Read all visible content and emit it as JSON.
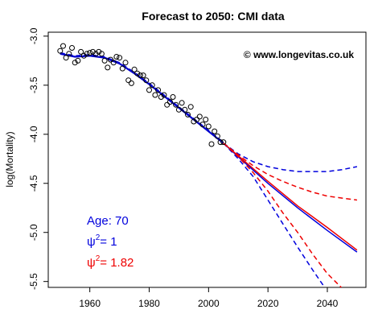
{
  "chart_data": {
    "type": "line",
    "title": "Forecast to 2050: CMI data",
    "xlabel": "",
    "ylabel": "log(Mortality)",
    "xlim": [
      1946,
      2053
    ],
    "ylim": [
      -5.56,
      -2.96
    ],
    "x_ticks": [
      1960,
      1980,
      2000,
      2020,
      2040
    ],
    "y_ticks": [
      -3.0,
      -3.5,
      -4.0,
      -4.5,
      -5.0,
      -5.5
    ],
    "y_tick_labels": [
      "-3.0",
      "-3.5",
      "-4.0",
      "-4.5",
      "-5.0",
      "-5.5"
    ],
    "credit": "© www.longevitas.co.uk",
    "annotation": {
      "age_text": "Age: 70",
      "psi_blue_prefix": "ψ",
      "psi_blue_sup": "2",
      "psi_blue_value": "= 1",
      "psi_red_prefix": "ψ",
      "psi_red_sup": "2",
      "psi_red_value": "= 1.82"
    },
    "colors": {
      "observed": "#000000",
      "blue": "#0000dd",
      "red": "#ee0000",
      "fitted": "#0000cc"
    },
    "observed": {
      "x": [
        1950,
        1951,
        1952,
        1953,
        1954,
        1955,
        1956,
        1957,
        1958,
        1959,
        1960,
        1961,
        1962,
        1963,
        1964,
        1965,
        1966,
        1967,
        1968,
        1969,
        1970,
        1971,
        1972,
        1973,
        1974,
        1975,
        1976,
        1977,
        1978,
        1979,
        1980,
        1981,
        1982,
        1983,
        1984,
        1985,
        1986,
        1987,
        1988,
        1989,
        1990,
        1991,
        1992,
        1993,
        1994,
        1995,
        1996,
        1997,
        1998,
        1999,
        2000,
        2001,
        2002,
        2003,
        2004,
        2005
      ],
      "y": [
        -3.15,
        -3.1,
        -3.22,
        -3.18,
        -3.12,
        -3.27,
        -3.25,
        -3.16,
        -3.2,
        -3.18,
        -3.17,
        -3.16,
        -3.18,
        -3.16,
        -3.18,
        -3.25,
        -3.32,
        -3.24,
        -3.27,
        -3.21,
        -3.22,
        -3.33,
        -3.27,
        -3.45,
        -3.48,
        -3.34,
        -3.38,
        -3.4,
        -3.4,
        -3.45,
        -3.55,
        -3.5,
        -3.6,
        -3.55,
        -3.62,
        -3.6,
        -3.7,
        -3.67,
        -3.62,
        -3.7,
        -3.75,
        -3.68,
        -3.75,
        -3.8,
        -3.72,
        -3.87,
        -3.85,
        -3.82,
        -3.9,
        -3.85,
        -3.92,
        -4.1,
        -3.97,
        -4.02,
        -4.08,
        -4.08
      ]
    },
    "series": [
      {
        "color": "blue",
        "dash": "dashed",
        "x": [
          1950,
          1955,
          1960,
          1965,
          1970,
          1975,
          1980,
          1985,
          1990,
          1995,
          2000,
          2005
        ],
        "y": [
          -3.17,
          -3.2,
          -3.19,
          -3.21,
          -3.27,
          -3.37,
          -3.48,
          -3.6,
          -3.72,
          -3.84,
          -3.96,
          -4.08
        ]
      },
      {
        "color": "fitted",
        "dash": "solid",
        "x": [
          1950,
          1955,
          1960,
          1965,
          1970,
          1975,
          1980,
          1985,
          1990,
          1995,
          2000,
          2005
        ],
        "y": [
          -3.18,
          -3.21,
          -3.2,
          -3.22,
          -3.28,
          -3.38,
          -3.49,
          -3.61,
          -3.73,
          -3.85,
          -3.97,
          -4.09
        ]
      },
      {
        "color": "blue",
        "dash": "solid",
        "x": [
          2005,
          2010,
          2020,
          2030,
          2040,
          2050
        ],
        "y": [
          -4.09,
          -4.23,
          -4.5,
          -4.75,
          -4.98,
          -5.2
        ]
      },
      {
        "color": "red",
        "dash": "solid",
        "x": [
          2005,
          2010,
          2020,
          2030,
          2040,
          2050
        ],
        "y": [
          -4.09,
          -4.22,
          -4.48,
          -4.73,
          -4.95,
          -5.18
        ]
      },
      {
        "color": "blue",
        "dash": "dashed",
        "x": [
          2005,
          2010,
          2015,
          2020,
          2025,
          2030,
          2035,
          2040,
          2045,
          2050
        ],
        "y": [
          -4.09,
          -4.2,
          -4.28,
          -4.33,
          -4.36,
          -4.38,
          -4.38,
          -4.38,
          -4.36,
          -4.33
        ]
      },
      {
        "color": "blue",
        "dash": "dashed",
        "x": [
          2005,
          2010,
          2015,
          2020,
          2025,
          2030,
          2035,
          2040
        ],
        "y": [
          -4.09,
          -4.25,
          -4.43,
          -4.67,
          -4.91,
          -5.15,
          -5.38,
          -5.6
        ]
      },
      {
        "color": "red",
        "dash": "dashed",
        "x": [
          2005,
          2010,
          2015,
          2020,
          2025,
          2030,
          2035,
          2040,
          2045,
          2050
        ],
        "y": [
          -4.09,
          -4.21,
          -4.32,
          -4.41,
          -4.48,
          -4.54,
          -4.59,
          -4.63,
          -4.65,
          -4.67
        ]
      },
      {
        "color": "red",
        "dash": "dashed",
        "x": [
          2005,
          2010,
          2015,
          2020,
          2025,
          2030,
          2035,
          2040,
          2045,
          2047
        ],
        "y": [
          -4.09,
          -4.23,
          -4.39,
          -4.58,
          -4.8,
          -5.0,
          -5.22,
          -5.42,
          -5.57,
          -5.62
        ]
      }
    ],
    "grid": false,
    "legend": "none"
  }
}
